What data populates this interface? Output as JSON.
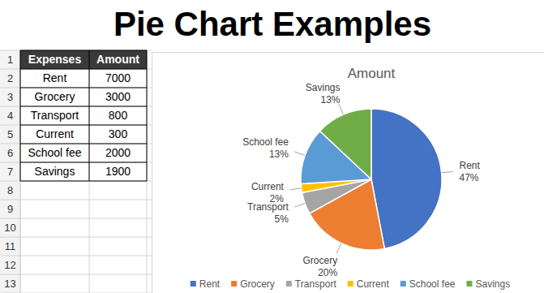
{
  "header": {
    "title": "Pie Chart Examples"
  },
  "table": {
    "row_numbers": [
      1,
      2,
      3,
      4,
      5,
      6,
      7,
      8,
      9,
      10,
      11,
      12,
      13
    ],
    "columns": [
      "Expenses",
      "Amount"
    ],
    "rows": [
      [
        "Rent",
        7000
      ],
      [
        "Grocery",
        3000
      ],
      [
        "Transport",
        800
      ],
      [
        "Current",
        300
      ],
      [
        "School fee",
        2000
      ],
      [
        "Savings",
        1900
      ]
    ]
  },
  "chart_data": {
    "type": "pie",
    "title": "Amount",
    "categories": [
      "Rent",
      "Grocery",
      "Transport",
      "Current",
      "School fee",
      "Savings"
    ],
    "values": [
      47,
      20,
      5,
      2,
      13,
      13
    ],
    "value_labels": [
      "47%",
      "20%",
      "5%",
      "2%",
      "13%",
      "13%"
    ],
    "colors": [
      "#4472c4",
      "#ed7d31",
      "#a5a5a5",
      "#ffc000",
      "#5b9bd5",
      "#70ad47"
    ],
    "data_labels": true,
    "legend": "bottom"
  }
}
